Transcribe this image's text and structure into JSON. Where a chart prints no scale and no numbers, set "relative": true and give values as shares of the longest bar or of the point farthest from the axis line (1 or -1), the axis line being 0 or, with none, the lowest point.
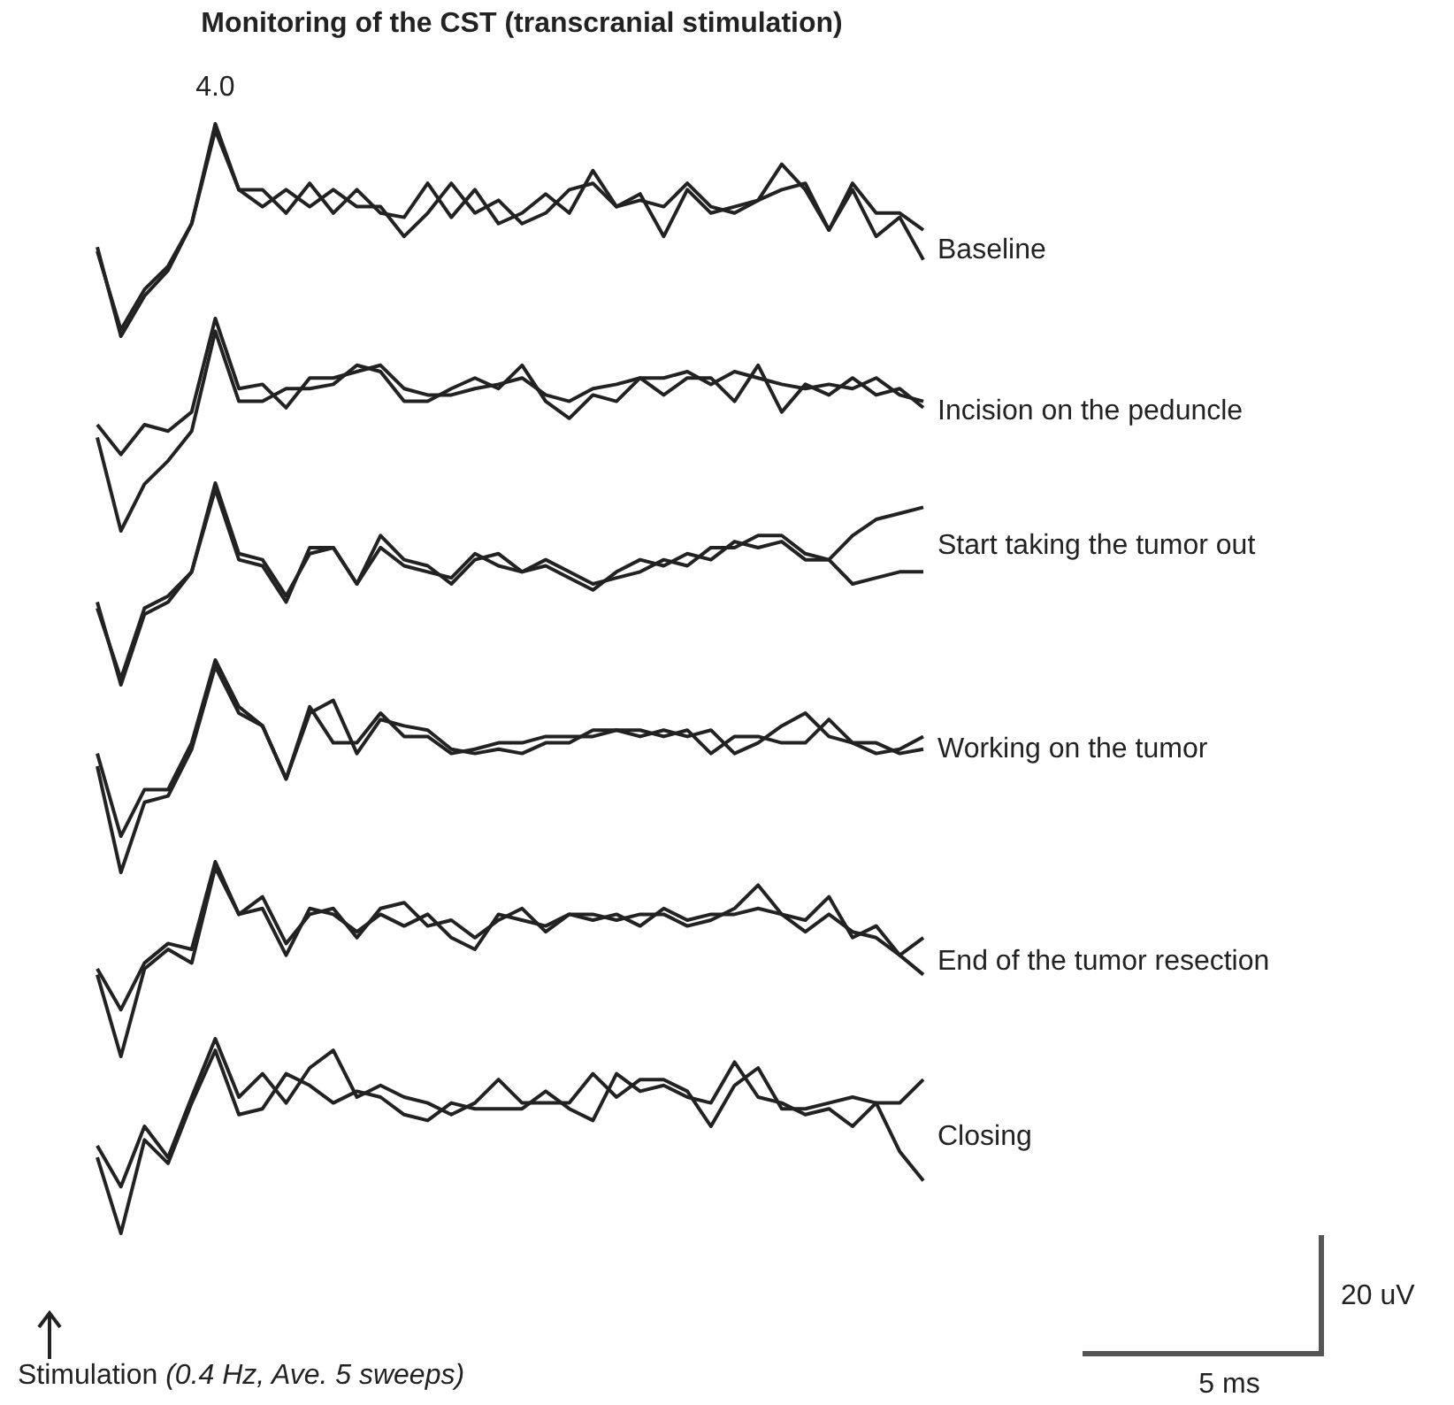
{
  "chart_data": [
    {
      "type": "line",
      "title": "Monitoring of the CST (transcranial stimulation)",
      "relative": true,
      "annotations": [
        "4.0",
        "Baseline"
      ],
      "categories": [
        null,
        null,
        null,
        null,
        null,
        null,
        null,
        null,
        null,
        null,
        null,
        null,
        null,
        null,
        null,
        null,
        null,
        null,
        null,
        null,
        null,
        null,
        null,
        null,
        null,
        null,
        null,
        null,
        null,
        null,
        null,
        null,
        null,
        null,
        null,
        null
      ],
      "series": [
        {
          "color": "#222222",
          "values": [
            0.42,
            0,
            0.19,
            0.31,
            0.53,
            1,
            0.69,
            0.61,
            0.69,
            0.61,
            0.69,
            0.61,
            0.61,
            0.47,
            0.58,
            0.72,
            0.58,
            0.64,
            0.53,
            0.58,
            0.69,
            0.72,
            0.61,
            0.67,
            0.47,
            0.69,
            0.58,
            0.61,
            0.64,
            0.69,
            0.72,
            0.5,
            0.69,
            0.47,
            0.56,
            0.36
          ]
        },
        {
          "color": "#222222",
          "values": [
            0.4,
            0.03,
            0.22,
            0.33,
            0.53,
            0.97,
            0.69,
            0.69,
            0.58,
            0.72,
            0.58,
            0.69,
            0.58,
            0.56,
            0.72,
            0.56,
            0.69,
            0.53,
            0.58,
            0.67,
            0.58,
            0.78,
            0.61,
            0.64,
            0.61,
            0.72,
            0.61,
            0.58,
            0.64,
            0.81,
            0.69,
            0.5,
            0.72,
            0.58,
            0.58,
            0.5
          ]
        }
      ]
    },
    {
      "type": "line",
      "relative": true,
      "annotations": [
        "Incision on the peduncle"
      ],
      "categories": [
        null,
        null,
        null,
        null,
        null,
        null,
        null,
        null,
        null,
        null,
        null,
        null,
        null,
        null,
        null,
        null,
        null,
        null,
        null,
        null,
        null,
        null,
        null,
        null,
        null,
        null,
        null,
        null,
        null,
        null,
        null,
        null,
        null,
        null,
        null,
        null
      ],
      "series": [
        {
          "color": "#222222",
          "values": [
            0.5,
            0.36,
            0.5,
            0.47,
            0.56,
            1,
            0.67,
            0.69,
            0.58,
            0.72,
            0.72,
            0.75,
            0.78,
            0.67,
            0.64,
            0.64,
            0.67,
            0.69,
            0.72,
            0.64,
            0.61,
            0.67,
            0.69,
            0.72,
            0.72,
            0.75,
            0.69,
            0.75,
            0.72,
            0.69,
            0.67,
            0.69,
            0.67,
            0.72,
            0.64,
            0.61
          ]
        },
        {
          "color": "#222222",
          "values": [
            0.44,
            0,
            0.22,
            0.33,
            0.47,
            0.94,
            0.61,
            0.61,
            0.67,
            0.67,
            0.69,
            0.78,
            0.75,
            0.61,
            0.61,
            0.67,
            0.72,
            0.67,
            0.78,
            0.61,
            0.53,
            0.64,
            0.61,
            0.72,
            0.64,
            0.72,
            0.72,
            0.61,
            0.78,
            0.56,
            0.69,
            0.64,
            0.72,
            0.64,
            0.67,
            0.58
          ]
        }
      ]
    },
    {
      "type": "line",
      "relative": true,
      "annotations": [
        "Start taking the tumor out"
      ],
      "categories": [
        null,
        null,
        null,
        null,
        null,
        null,
        null,
        null,
        null,
        null,
        null,
        null,
        null,
        null,
        null,
        null,
        null,
        null,
        null,
        null,
        null,
        null,
        null,
        null,
        null,
        null,
        null,
        null,
        null,
        null,
        null,
        null,
        null,
        null,
        null,
        null
      ],
      "series": [
        {
          "color": "#222222",
          "values": [
            0.41,
            0,
            0.35,
            0.41,
            0.56,
            1,
            0.65,
            0.62,
            0.44,
            0.65,
            0.68,
            0.5,
            0.74,
            0.62,
            0.59,
            0.5,
            0.62,
            0.65,
            0.56,
            0.62,
            0.56,
            0.5,
            0.53,
            0.56,
            0.62,
            0.59,
            0.68,
            0.68,
            0.74,
            0.74,
            0.65,
            0.62,
            0.74,
            0.82,
            0.85,
            0.88
          ]
        },
        {
          "color": "#222222",
          "values": [
            0.38,
            0.03,
            0.38,
            0.44,
            0.56,
            0.97,
            0.62,
            0.59,
            0.41,
            0.68,
            0.68,
            0.5,
            0.68,
            0.59,
            0.56,
            0.53,
            0.65,
            0.59,
            0.56,
            0.59,
            0.53,
            0.47,
            0.56,
            0.62,
            0.59,
            0.65,
            0.62,
            0.71,
            0.68,
            0.71,
            0.62,
            0.62,
            0.5,
            0.53,
            0.56,
            0.56
          ]
        }
      ]
    },
    {
      "type": "line",
      "relative": true,
      "annotations": [
        "Working on the tumor"
      ],
      "categories": [
        null,
        null,
        null,
        null,
        null,
        null,
        null,
        null,
        null,
        null,
        null,
        null,
        null,
        null,
        null,
        null,
        null,
        null,
        null,
        null,
        null,
        null,
        null,
        null,
        null,
        null,
        null,
        null,
        null,
        null,
        null,
        null,
        null,
        null,
        null,
        null
      ],
      "series": [
        {
          "color": "#222222",
          "values": [
            0.56,
            0.17,
            0.39,
            0.39,
            0.61,
            1,
            0.78,
            0.69,
            0.44,
            0.75,
            0.81,
            0.56,
            0.72,
            0.69,
            0.67,
            0.58,
            0.56,
            0.58,
            0.56,
            0.61,
            0.61,
            0.67,
            0.67,
            0.64,
            0.67,
            0.64,
            0.67,
            0.56,
            0.61,
            0.69,
            0.75,
            0.64,
            0.61,
            0.56,
            0.58,
            0.64
          ]
        },
        {
          "color": "#222222",
          "values": [
            0.5,
            0,
            0.33,
            0.36,
            0.58,
            0.97,
            0.75,
            0.69,
            0.44,
            0.78,
            0.61,
            0.61,
            0.75,
            0.64,
            0.64,
            0.56,
            0.58,
            0.61,
            0.61,
            0.64,
            0.64,
            0.64,
            0.67,
            0.67,
            0.64,
            0.67,
            0.56,
            0.64,
            0.64,
            0.61,
            0.61,
            0.72,
            0.61,
            0.61,
            0.56,
            0.58
          ]
        }
      ]
    },
    {
      "type": "line",
      "relative": true,
      "annotations": [
        "End of the tumor resection"
      ],
      "categories": [
        null,
        null,
        null,
        null,
        null,
        null,
        null,
        null,
        null,
        null,
        null,
        null,
        null,
        null,
        null,
        null,
        null,
        null,
        null,
        null,
        null,
        null,
        null,
        null,
        null,
        null,
        null,
        null,
        null,
        null,
        null,
        null,
        null,
        null,
        null,
        null
      ],
      "series": [
        {
          "color": "#222222",
          "values": [
            0.45,
            0.24,
            0.48,
            0.58,
            0.55,
            1,
            0.73,
            0.82,
            0.58,
            0.73,
            0.76,
            0.61,
            0.76,
            0.79,
            0.67,
            0.7,
            0.61,
            0.7,
            0.76,
            0.64,
            0.73,
            0.73,
            0.7,
            0.73,
            0.73,
            0.67,
            0.7,
            0.76,
            0.88,
            0.73,
            0.64,
            0.73,
            0.64,
            0.61,
            0.52,
            0.61
          ]
        },
        {
          "color": "#222222",
          "values": [
            0.42,
            0,
            0.45,
            0.55,
            0.48,
            0.97,
            0.73,
            0.76,
            0.52,
            0.76,
            0.73,
            0.64,
            0.73,
            0.67,
            0.73,
            0.61,
            0.55,
            0.73,
            0.7,
            0.67,
            0.73,
            0.7,
            0.73,
            0.67,
            0.76,
            0.7,
            0.73,
            0.73,
            0.76,
            0.73,
            0.7,
            0.82,
            0.61,
            0.67,
            0.52,
            0.42
          ]
        }
      ]
    },
    {
      "type": "line",
      "relative": true,
      "annotations": [
        "Closing",
        "Stimulation (0.4 Hz, Ave. 5 sweeps)",
        "20 uV",
        "5 ms"
      ],
      "categories": [
        null,
        null,
        null,
        null,
        null,
        null,
        null,
        null,
        null,
        null,
        null,
        null,
        null,
        null,
        null,
        null,
        null,
        null,
        null,
        null,
        null,
        null,
        null,
        null,
        null,
        null,
        null,
        null,
        null,
        null,
        null,
        null,
        null,
        null,
        null,
        null
      ],
      "series": [
        {
          "color": "#222222",
          "values": [
            0.45,
            0.24,
            0.55,
            0.39,
            0.7,
            1,
            0.7,
            0.82,
            0.67,
            0.85,
            0.94,
            0.7,
            0.76,
            0.7,
            0.67,
            0.61,
            0.67,
            0.79,
            0.67,
            0.67,
            0.67,
            0.82,
            0.7,
            0.79,
            0.79,
            0.73,
            0.55,
            0.76,
            0.85,
            0.64,
            0.64,
            0.67,
            0.7,
            0.67,
            0.67,
            0.79
          ]
        },
        {
          "color": "#222222",
          "values": [
            0.39,
            0,
            0.48,
            0.36,
            0.67,
            0.94,
            0.61,
            0.64,
            0.82,
            0.76,
            0.67,
            0.73,
            0.7,
            0.61,
            0.58,
            0.67,
            0.64,
            0.64,
            0.64,
            0.73,
            0.64,
            0.58,
            0.82,
            0.73,
            0.76,
            0.7,
            0.67,
            0.88,
            0.7,
            0.67,
            0.61,
            0.64,
            0.55,
            0.67,
            0.42,
            0.27
          ]
        }
      ]
    }
  ]
}
